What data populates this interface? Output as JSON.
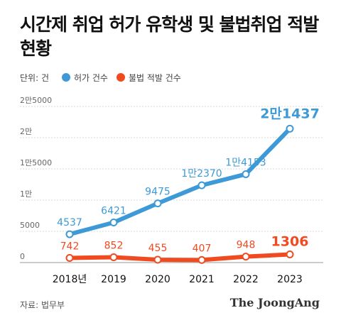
{
  "title": "시간제 취업 허가 유학생 및 불법취업 적발 현황",
  "legend": {
    "unit": "단위: 건",
    "series": [
      {
        "name": "허가 건수",
        "color": "#3d9ad7"
      },
      {
        "name": "불법 적발 건수",
        "color": "#f04a21"
      }
    ]
  },
  "chart_data": {
    "type": "line",
    "x": [
      "2018년",
      "2019",
      "2020",
      "2021",
      "2022",
      "2023"
    ],
    "y_ticks": [
      {
        "value": 0,
        "label": "0"
      },
      {
        "value": 5000,
        "label": "5000"
      },
      {
        "value": 10000,
        "label": "1만"
      },
      {
        "value": 15000,
        "label": "1만5000"
      },
      {
        "value": 20000,
        "label": "2만"
      },
      {
        "value": 25000,
        "label": "2만5000"
      }
    ],
    "ylim": [
      0,
      25000
    ],
    "grid": true,
    "series": [
      {
        "name": "허가 건수",
        "color": "#3d9ad7",
        "values": [
          4537,
          6421,
          9475,
          12370,
          14153,
          21437
        ],
        "labels": [
          "4537",
          "6421",
          "9475",
          "1만2370",
          "1만4153",
          "2만1437"
        ]
      },
      {
        "name": "불법 적발 건수",
        "color": "#f04a21",
        "values": [
          742,
          852,
          455,
          407,
          948,
          1306
        ],
        "labels": [
          "742",
          "852",
          "455",
          "407",
          "948",
          "1306"
        ]
      }
    ]
  },
  "footer": {
    "source": "자료: 법무부",
    "brand": "The JoongAng"
  }
}
